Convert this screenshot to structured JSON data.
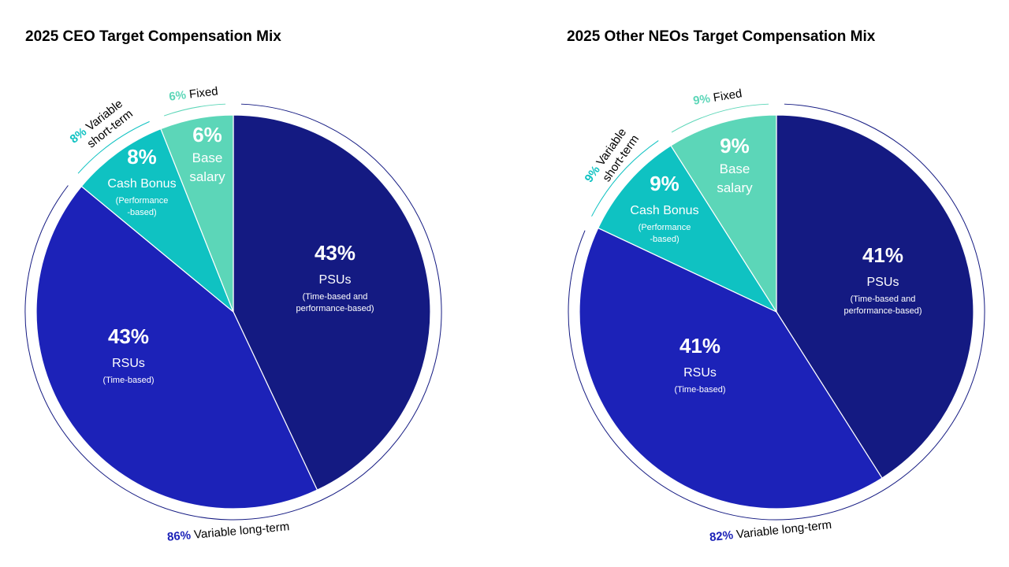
{
  "chart_data": [
    {
      "type": "pie",
      "title": "2025 CEO Target Compensation Mix",
      "slices": [
        {
          "label": "PSUs",
          "pct": "43%",
          "value": 43,
          "sub": [
            "(Time-based and",
            "performance-based)"
          ],
          "color": "#141a82"
        },
        {
          "label": "RSUs",
          "pct": "43%",
          "value": 43,
          "sub": [
            "(Time-based)"
          ],
          "color": "#1c22b8"
        },
        {
          "label": "Cash Bonus",
          "pct": "8%",
          "value": 8,
          "sub": [
            "(Performance",
            "-based)"
          ],
          "color": "#0fc2c2"
        },
        {
          "label": "Base salary",
          "pct": "6%",
          "value": 6,
          "sub": [],
          "color": "#5cd6b8"
        }
      ],
      "groups": [
        {
          "pct": "86%",
          "label": "Variable long-term",
          "value": 86,
          "color": "#1c22b8"
        },
        {
          "pct": "8%",
          "label": "Variable short-term",
          "value": 8,
          "color": "#0fc2c2"
        },
        {
          "pct": "6%",
          "label": "Fixed",
          "value": 6,
          "color": "#5cd6b8"
        }
      ]
    },
    {
      "type": "pie",
      "title": "2025 Other NEOs Target Compensation Mix",
      "slices": [
        {
          "label": "PSUs",
          "pct": "41%",
          "value": 41,
          "sub": [
            "(Time-based and",
            "performance-based)"
          ],
          "color": "#141a82"
        },
        {
          "label": "RSUs",
          "pct": "41%",
          "value": 41,
          "sub": [
            "(Time-based)"
          ],
          "color": "#1c22b8"
        },
        {
          "label": "Cash Bonus",
          "pct": "9%",
          "value": 9,
          "sub": [
            "(Performance",
            "-based)"
          ],
          "color": "#0fc2c2"
        },
        {
          "label": "Base salary",
          "pct": "9%",
          "value": 9,
          "sub": [],
          "color": "#5cd6b8"
        }
      ],
      "groups": [
        {
          "pct": "82%",
          "label": "Variable long-term",
          "value": 82,
          "color": "#1c22b8"
        },
        {
          "pct": "9%",
          "label": "Variable short-term",
          "value": 9,
          "color": "#0fc2c2"
        },
        {
          "pct": "9%",
          "label": "Fixed",
          "value": 9,
          "color": "#5cd6b8"
        }
      ]
    }
  ]
}
